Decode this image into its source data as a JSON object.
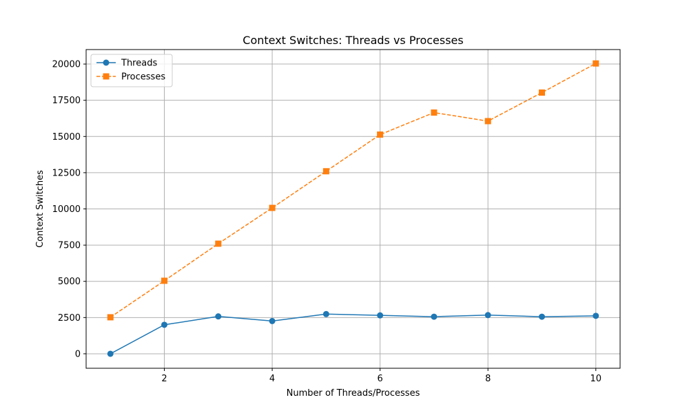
{
  "chart_data": {
    "type": "line",
    "title": "Context Switches: Threads vs Processes",
    "xlabel": "Number of Threads/Processes",
    "ylabel": "Context Switches",
    "xlim": [
      0.55,
      10.45
    ],
    "ylim": [
      -1000,
      21000
    ],
    "x_ticks": [
      2,
      4,
      6,
      8,
      10
    ],
    "y_ticks": [
      0,
      2500,
      5000,
      7500,
      10000,
      12500,
      15000,
      17500,
      20000
    ],
    "grid": true,
    "legend_position": "top-left",
    "x": [
      1,
      2,
      3,
      4,
      5,
      6,
      7,
      8,
      9,
      10
    ],
    "series": [
      {
        "name": "Threads",
        "values": [
          0,
          2000,
          2580,
          2260,
          2740,
          2650,
          2560,
          2670,
          2560,
          2620
        ],
        "color": "#1f77b4",
        "marker": "circle",
        "line_style": "solid"
      },
      {
        "name": "Processes",
        "values": [
          2520,
          5040,
          7600,
          10070,
          12600,
          15130,
          16650,
          16060,
          18030,
          20040
        ],
        "color": "#ff7f0e",
        "marker": "square",
        "line_style": "dashed"
      }
    ]
  }
}
